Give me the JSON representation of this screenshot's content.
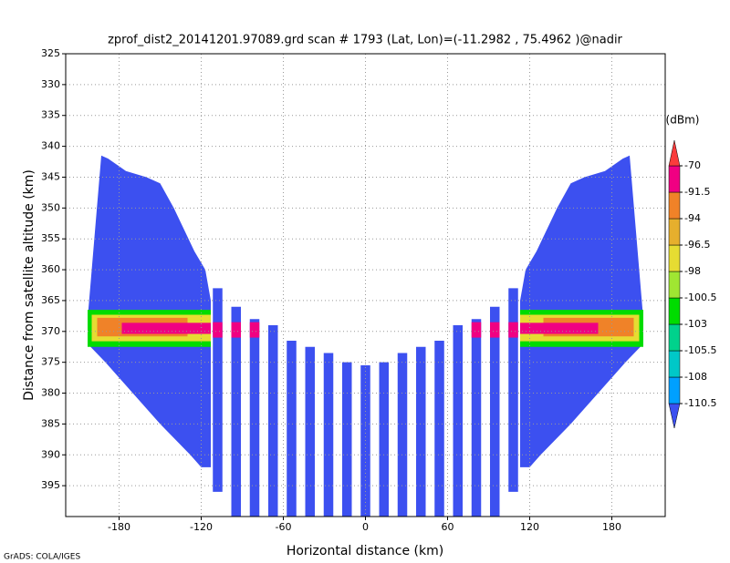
{
  "chart_data": {
    "type": "shaded",
    "title": "zprof_dist2_20141201.97089.grd  scan # 1793  (Lat, Lon)=(-11.2982 , 75.4962 )@nadir",
    "xlabel": "Horizontal distance (km)",
    "ylabel": "Distance from satellite altitude (km)",
    "colorbar_label": "(dBm)",
    "footer": "GrADS: COLA/IGES",
    "xlim": [
      -219,
      219
    ],
    "xticks": [
      -180,
      -120,
      -60,
      0,
      60,
      120,
      180
    ],
    "ylim": [
      325,
      400
    ],
    "yticks": [
      325,
      330,
      335,
      340,
      345,
      350,
      355,
      360,
      365,
      370,
      375,
      380,
      385,
      390,
      395
    ],
    "y_reversed": true,
    "grid": true,
    "levels": [
      -110.5,
      -108,
      -105.5,
      -103,
      -100.5,
      -98,
      -96.5,
      -94,
      -91.5,
      -70
    ],
    "colors": [
      "#3c50f0",
      "#00a0ff",
      "#00c8c8",
      "#00d28c",
      "#00dc00",
      "#a0e632",
      "#e6dc32",
      "#e6af2d",
      "#f08228",
      "#f00082",
      "#fa3c3c"
    ],
    "regions": [
      {
        "value": -112,
        "x": [
          -203,
          -193,
          -188,
          -175,
          -160,
          -150,
          -140,
          -125,
          -117,
          -113,
          -113,
          -120,
          -128,
          -150,
          -170,
          -190,
          -203
        ],
        "y": [
          368,
          341.5,
          342,
          344,
          345,
          346,
          350,
          357,
          360,
          365,
          392,
          392,
          390,
          385,
          380,
          375,
          372
        ]
      },
      {
        "value": -112,
        "x": [
          203,
          193,
          188,
          175,
          160,
          150,
          140,
          125,
          117,
          113,
          113,
          120,
          128,
          150,
          170,
          190,
          203
        ],
        "y": [
          368,
          341.5,
          342,
          344,
          345,
          346,
          350,
          357,
          360,
          365,
          392,
          392,
          390,
          385,
          380,
          375,
          372
        ]
      },
      {
        "value": -112,
        "x": [
          -111.5,
          -104.5,
          -104.5,
          -111.5
        ],
        "y": [
          363,
          363,
          396,
          396
        ]
      },
      {
        "value": -112,
        "x": [
          -98,
          -91,
          -91,
          -98
        ],
        "y": [
          366,
          366,
          400,
          400
        ]
      },
      {
        "value": -112,
        "x": [
          -84.5,
          -77.5,
          -77.5,
          -84.5
        ],
        "y": [
          368,
          368,
          400,
          400
        ]
      },
      {
        "value": -112,
        "x": [
          -71,
          -64,
          -64,
          -71
        ],
        "y": [
          369,
          369,
          400,
          400
        ]
      },
      {
        "value": -112,
        "x": [
          -57.5,
          -50.5,
          -50.5,
          -57.5
        ],
        "y": [
          371.5,
          371.5,
          400,
          400
        ]
      },
      {
        "value": -112,
        "x": [
          -44,
          -37,
          -37,
          -44
        ],
        "y": [
          372.5,
          372.5,
          400,
          400
        ]
      },
      {
        "value": -112,
        "x": [
          -30.5,
          -23.5,
          -23.5,
          -30.5
        ],
        "y": [
          373.5,
          373.5,
          400,
          400
        ]
      },
      {
        "value": -112,
        "x": [
          -17,
          -10,
          -10,
          -17
        ],
        "y": [
          375,
          375,
          400,
          400
        ]
      },
      {
        "value": -112,
        "x": [
          -3.5,
          3.5,
          3.5,
          -3.5
        ],
        "y": [
          375.5,
          375.5,
          400,
          400
        ]
      },
      {
        "value": -112,
        "x": [
          10,
          17,
          17,
          10
        ],
        "y": [
          375,
          375,
          400,
          400
        ]
      },
      {
        "value": -112,
        "x": [
          23.5,
          30.5,
          30.5,
          23.5
        ],
        "y": [
          373.5,
          373.5,
          400,
          400
        ]
      },
      {
        "value": -112,
        "x": [
          37,
          44,
          44,
          37
        ],
        "y": [
          372.5,
          372.5,
          400,
          400
        ]
      },
      {
        "value": -112,
        "x": [
          50.5,
          57.5,
          57.5,
          50.5
        ],
        "y": [
          371.5,
          371.5,
          400,
          400
        ]
      },
      {
        "value": -112,
        "x": [
          64,
          71,
          71,
          64
        ],
        "y": [
          369,
          369,
          400,
          400
        ]
      },
      {
        "value": -112,
        "x": [
          77.5,
          84.5,
          84.5,
          77.5
        ],
        "y": [
          368,
          368,
          400,
          400
        ]
      },
      {
        "value": -112,
        "x": [
          91,
          98,
          98,
          91
        ],
        "y": [
          366,
          366,
          400,
          400
        ]
      },
      {
        "value": -112,
        "x": [
          104.5,
          111.5,
          111.5,
          104.5
        ],
        "y": [
          363,
          363,
          396,
          396
        ]
      },
      {
        "value": -101,
        "x": [
          -203,
          -113,
          -113,
          -203
        ],
        "y": [
          366.5,
          366.5,
          372.5,
          372.5
        ]
      },
      {
        "value": -97,
        "x": [
          -200,
          -113,
          -113,
          -200
        ],
        "y": [
          367.3,
          367.3,
          371.6,
          371.6
        ]
      },
      {
        "value": -93,
        "x": [
          -196,
          -130,
          -130,
          -196
        ],
        "y": [
          367.8,
          367.8,
          370.8,
          370.8
        ]
      },
      {
        "value": -85,
        "x": [
          -178,
          -113,
          -113,
          -178
        ],
        "y": [
          368.6,
          368.6,
          370.4,
          370.4
        ]
      },
      {
        "value": -101,
        "x": [
          113,
          203,
          203,
          113
        ],
        "y": [
          366.5,
          366.5,
          372.5,
          372.5
        ]
      },
      {
        "value": -97,
        "x": [
          113,
          200,
          200,
          113
        ],
        "y": [
          367.3,
          367.3,
          371.6,
          371.6
        ]
      },
      {
        "value": -93,
        "x": [
          130,
          196,
          196,
          130
        ],
        "y": [
          367.8,
          367.8,
          370.8,
          370.8
        ]
      },
      {
        "value": -85,
        "x": [
          113,
          170,
          170,
          113
        ],
        "y": [
          368.6,
          368.6,
          370.4,
          370.4
        ]
      },
      {
        "value": -85,
        "x": [
          -111.5,
          -104.5,
          -104.5,
          -111.5
        ],
        "y": [
          368.5,
          368.5,
          371,
          371
        ]
      },
      {
        "value": -85,
        "x": [
          -98,
          -91,
          -91,
          -98
        ],
        "y": [
          368.5,
          368.5,
          371,
          371
        ]
      },
      {
        "value": -85,
        "x": [
          -84.5,
          -77.5,
          -77.5,
          -84.5
        ],
        "y": [
          368.5,
          368.5,
          371,
          371
        ]
      },
      {
        "value": -85,
        "x": [
          77.5,
          84.5,
          84.5,
          77.5
        ],
        "y": [
          368.5,
          368.5,
          371,
          371
        ]
      },
      {
        "value": -85,
        "x": [
          91,
          98,
          98,
          91
        ],
        "y": [
          368.5,
          368.5,
          371,
          371
        ]
      },
      {
        "value": -85,
        "x": [
          104.5,
          111.5,
          111.5,
          104.5
        ],
        "y": [
          368.5,
          368.5,
          371,
          371
        ]
      }
    ]
  }
}
